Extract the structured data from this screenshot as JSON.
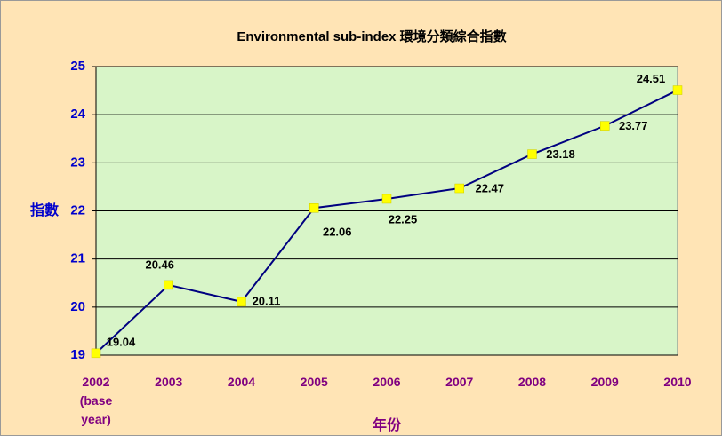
{
  "chart_data": {
    "type": "line",
    "title": "Environmental sub-index 環境分類綜合指數",
    "xlabel": "年份",
    "ylabel": "指數",
    "categories": [
      "2002 (base year)",
      "2003",
      "2004",
      "2005",
      "2006",
      "2007",
      "2008",
      "2009",
      "2010"
    ],
    "series": [
      {
        "color": "#000080",
        "marker_color": "#ffff00",
        "values": [
          19.04,
          20.46,
          20.11,
          22.06,
          22.25,
          22.47,
          23.18,
          23.77,
          24.51
        ]
      }
    ],
    "ylim": [
      19,
      25
    ],
    "yticks": [
      19,
      20,
      21,
      22,
      23,
      24,
      25
    ],
    "grid": true
  }
}
